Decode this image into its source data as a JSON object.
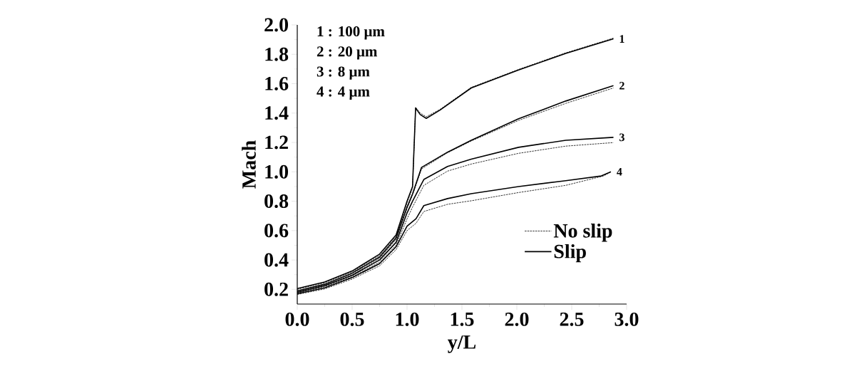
{
  "chart_data": {
    "type": "line",
    "xlabel": "y/L",
    "ylabel": "Mach",
    "xlim": [
      0,
      3.0
    ],
    "ylim": [
      0.1,
      2.0
    ],
    "xticks": [
      {
        "value": 0,
        "label": "0.0"
      },
      0.5,
      {
        "value": 1,
        "label": "1.0"
      },
      1.5,
      {
        "value": 2,
        "label": "2.0"
      },
      2.5,
      {
        "value": 3,
        "label": "3.0"
      }
    ],
    "yticks": [
      0.2,
      0.4,
      0.6,
      0.8,
      {
        "value": 1,
        "label": "1.0"
      },
      1.2,
      1.4,
      1.6,
      1.8,
      {
        "value": 2,
        "label": "2.0"
      }
    ],
    "legend": "bottom right",
    "series": [
      {
        "name": "No slip",
        "color": "#000000",
        "line_style": "dashed",
        "x": [
          0,
          0.25,
          0.5,
          0.75,
          0.9,
          1.0,
          1.05,
          1.078,
          1.12,
          1.175,
          1.3,
          1.585,
          2.016,
          2.446,
          2.88
        ],
        "values": [
          0.2,
          0.245,
          0.318,
          0.43,
          0.56,
          0.79,
          0.89,
          1.44,
          1.4,
          1.375,
          1.425,
          1.575,
          1.697,
          1.81,
          1.91
        ]
      },
      {
        "color": "#000000",
        "line_style": "dashed",
        "x": [
          0,
          0.25,
          0.5,
          0.75,
          0.9,
          1.0,
          1.05,
          1.132,
          1.369,
          1.585,
          2.016,
          2.446,
          2.88
        ],
        "values": [
          0.185,
          0.228,
          0.3,
          0.41,
          0.54,
          0.75,
          0.84,
          1.02,
          1.13,
          1.21,
          1.35,
          1.466,
          1.571
        ]
      },
      {
        "color": "#000000",
        "line_style": "dashed",
        "x": [
          0,
          0.25,
          0.5,
          0.75,
          0.9,
          1.0,
          1.05,
          1.153,
          1.369,
          1.585,
          2.016,
          2.446,
          2.88
        ],
        "values": [
          0.175,
          0.218,
          0.285,
          0.385,
          0.5,
          0.68,
          0.76,
          0.908,
          1.005,
          1.053,
          1.126,
          1.175,
          1.199
        ]
      },
      {
        "color": "#000000",
        "line_style": "dashed",
        "x": [
          0,
          0.25,
          0.5,
          0.75,
          0.9,
          1.0,
          1.082,
          1.153,
          1.369,
          1.585,
          2.016,
          2.446,
          2.79,
          2.857
        ],
        "values": [
          0.165,
          0.203,
          0.27,
          0.36,
          0.47,
          0.6,
          0.65,
          0.73,
          0.779,
          0.803,
          0.859,
          0.908,
          0.972,
          1.0
        ]
      },
      {
        "name": "Slip",
        "color": "#000000",
        "line_style": "solid",
        "x": [
          0,
          0.25,
          0.5,
          0.75,
          0.9,
          1.0,
          1.05,
          1.078,
          1.12,
          1.175,
          1.3,
          1.585,
          2.016,
          2.446,
          2.88
        ],
        "values": [
          0.205,
          0.25,
          0.325,
          0.44,
          0.57,
          0.8,
          0.9,
          1.434,
          1.39,
          1.364,
          1.42,
          1.571,
          1.693,
          1.806,
          1.905
        ]
      },
      {
        "color": "#000000",
        "line_style": "solid",
        "x": [
          0,
          0.25,
          0.5,
          0.75,
          0.9,
          1.0,
          1.05,
          1.132,
          1.369,
          1.585,
          2.016,
          2.446,
          2.88
        ],
        "values": [
          0.19,
          0.235,
          0.31,
          0.42,
          0.55,
          0.76,
          0.85,
          1.03,
          1.134,
          1.215,
          1.361,
          1.482,
          1.587
        ]
      },
      {
        "color": "#000000",
        "line_style": "solid",
        "x": [
          0,
          0.25,
          0.5,
          0.75,
          0.9,
          1.0,
          1.05,
          1.153,
          1.369,
          1.585,
          2.016,
          2.446,
          2.88
        ],
        "values": [
          0.18,
          0.225,
          0.295,
          0.4,
          0.52,
          0.72,
          0.8,
          0.948,
          1.037,
          1.086,
          1.167,
          1.215,
          1.235
        ]
      },
      {
        "color": "#000000",
        "line_style": "solid",
        "x": [
          0,
          0.25,
          0.5,
          0.75,
          0.9,
          1.0,
          1.082,
          1.153,
          1.369,
          1.585,
          2.016,
          2.446,
          2.77,
          2.857
        ],
        "values": [
          0.17,
          0.21,
          0.28,
          0.375,
          0.49,
          0.63,
          0.681,
          0.77,
          0.818,
          0.851,
          0.9,
          0.94,
          0.972,
          1.0
        ]
      }
    ],
    "annotations": [
      "1 : 100 μm",
      "2 : 20 μm",
      "3 : 8 μm",
      "4 : 4 μm",
      "1",
      "2",
      "3",
      "4"
    ]
  }
}
